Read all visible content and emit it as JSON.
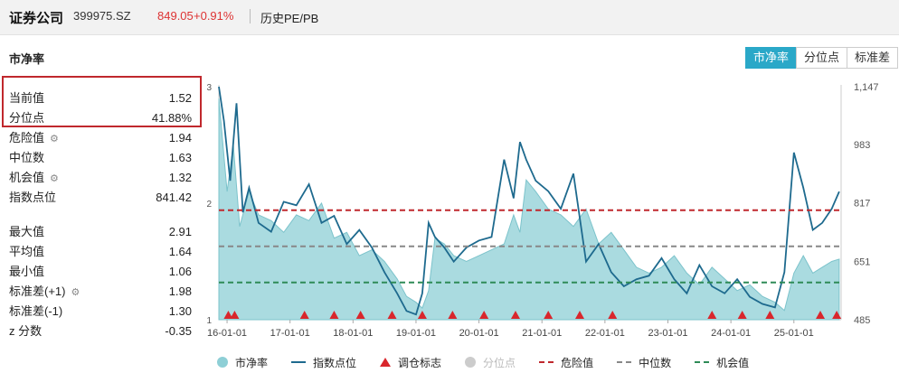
{
  "header": {
    "name": "证券公司",
    "code": "399975.SZ",
    "price": "849.05",
    "change": "+0.91%",
    "history_link": "历史PE/PB"
  },
  "section_title": "市净率",
  "tabs": [
    "市净率",
    "分位点",
    "标准差"
  ],
  "stats_top": [
    {
      "label": "当前值",
      "value": "1.52"
    },
    {
      "label": "分位点",
      "value": "41.88%"
    },
    {
      "label": "危险值",
      "value": "1.94",
      "gear": true
    },
    {
      "label": "中位数",
      "value": "1.63"
    },
    {
      "label": "机会值",
      "value": "1.32",
      "gear": true
    },
    {
      "label": "指数点位",
      "value": "841.42"
    }
  ],
  "stats_bottom": [
    {
      "label": "最大值",
      "value": "2.91"
    },
    {
      "label": "平均值",
      "value": "1.64"
    },
    {
      "label": "最小值",
      "value": "1.06"
    },
    {
      "label": "标准差(+1)",
      "value": "1.98",
      "gear": true
    },
    {
      "label": "标准差(-1)",
      "value": "1.30"
    },
    {
      "label": "z 分数",
      "value": "-0.35"
    }
  ],
  "legend": [
    "市净率",
    "指数点位",
    "调仓标志",
    "分位点",
    "危险值",
    "中位数",
    "机会值"
  ],
  "colors": {
    "accent": "#2aa8c8",
    "pb_fill": "#8ecfd6",
    "index_line": "#1e6a8e",
    "danger": "#c0282d",
    "median": "#888888",
    "opportunity": "#2e8b57",
    "rebalance": "#d9262c"
  },
  "chart_data": {
    "type": "area",
    "x_ticks": [
      "16-01-01",
      "17-01-01",
      "18-01-01",
      "19-01-01",
      "20-01-01",
      "21-01-01",
      "22-01-01",
      "23-01-01",
      "24-01-01",
      "25-01-01"
    ],
    "y_left_ticks": [
      "3",
      "2",
      "1"
    ],
    "y_left_range": [
      1,
      3
    ],
    "y_right_ticks": [
      "1,147",
      "983",
      "817",
      "651",
      "485"
    ],
    "y_right_range": [
      485,
      1147
    ],
    "danger": 1.94,
    "median": 1.63,
    "opportunity": 1.32,
    "rebalance_dates": [
      2016.02,
      2016.12,
      2017.23,
      2017.7,
      2018.12,
      2018.62,
      2019.1,
      2019.58,
      2020.08,
      2020.58,
      2021.1,
      2021.6,
      2022.12,
      2023.7,
      2024.18,
      2024.62,
      2025.42,
      2025.68
    ],
    "series": [
      {
        "name": "市净率",
        "x": [
          2015.87,
          2016.0,
          2016.1,
          2016.2,
          2016.35,
          2016.5,
          2016.7,
          2016.9,
          2017.1,
          2017.3,
          2017.5,
          2017.7,
          2017.9,
          2018.1,
          2018.3,
          2018.5,
          2018.7,
          2018.85,
          2019.0,
          2019.1,
          2019.2,
          2019.3,
          2019.45,
          2019.6,
          2019.8,
          2020.0,
          2020.2,
          2020.4,
          2020.55,
          2020.65,
          2020.75,
          2020.9,
          2021.1,
          2021.3,
          2021.5,
          2021.7,
          2021.9,
          2022.1,
          2022.3,
          2022.5,
          2022.7,
          2022.9,
          2023.1,
          2023.3,
          2023.5,
          2023.7,
          2023.9,
          2024.1,
          2024.3,
          2024.5,
          2024.7,
          2024.85,
          2025.0,
          2025.15,
          2025.3,
          2025.45,
          2025.6,
          2025.72
        ],
        "y": [
          2.9,
          2.1,
          2.5,
          1.8,
          2.1,
          1.9,
          1.85,
          1.75,
          1.9,
          1.85,
          2.0,
          1.7,
          1.75,
          1.55,
          1.6,
          1.5,
          1.35,
          1.2,
          1.15,
          1.1,
          1.25,
          1.7,
          1.65,
          1.55,
          1.5,
          1.55,
          1.6,
          1.65,
          1.9,
          1.75,
          2.2,
          2.1,
          1.95,
          1.9,
          1.8,
          1.95,
          1.65,
          1.75,
          1.6,
          1.45,
          1.4,
          1.45,
          1.55,
          1.4,
          1.3,
          1.45,
          1.35,
          1.25,
          1.3,
          1.2,
          1.15,
          1.08,
          1.4,
          1.55,
          1.4,
          1.45,
          1.5,
          1.52
        ]
      },
      {
        "name": "指数点位",
        "x": [
          2015.87,
          2015.95,
          2016.05,
          2016.15,
          2016.25,
          2016.35,
          2016.5,
          2016.7,
          2016.9,
          2017.1,
          2017.3,
          2017.5,
          2017.7,
          2017.9,
          2018.1,
          2018.3,
          2018.5,
          2018.7,
          2018.85,
          2019.0,
          2019.1,
          2019.2,
          2019.3,
          2019.45,
          2019.6,
          2019.8,
          2020.0,
          2020.2,
          2020.4,
          2020.55,
          2020.65,
          2020.75,
          2020.9,
          2021.1,
          2021.3,
          2021.5,
          2021.7,
          2021.9,
          2022.1,
          2022.3,
          2022.5,
          2022.7,
          2022.9,
          2023.1,
          2023.3,
          2023.5,
          2023.7,
          2023.9,
          2024.1,
          2024.3,
          2024.5,
          2024.7,
          2024.85,
          2025.0,
          2025.15,
          2025.3,
          2025.45,
          2025.6,
          2025.72
        ],
        "y": [
          1147,
          1050,
          880,
          1100,
          790,
          860,
          760,
          735,
          820,
          810,
          870,
          760,
          780,
          700,
          740,
          690,
          620,
          560,
          510,
          500,
          560,
          760,
          720,
          690,
          650,
          690,
          710,
          720,
          940,
          830,
          990,
          940,
          880,
          850,
          800,
          900,
          650,
          700,
          620,
          580,
          600,
          610,
          660,
          600,
          560,
          640,
          580,
          560,
          600,
          550,
          530,
          520,
          620,
          960,
          860,
          740,
          760,
          800,
          849
        ]
      }
    ]
  }
}
